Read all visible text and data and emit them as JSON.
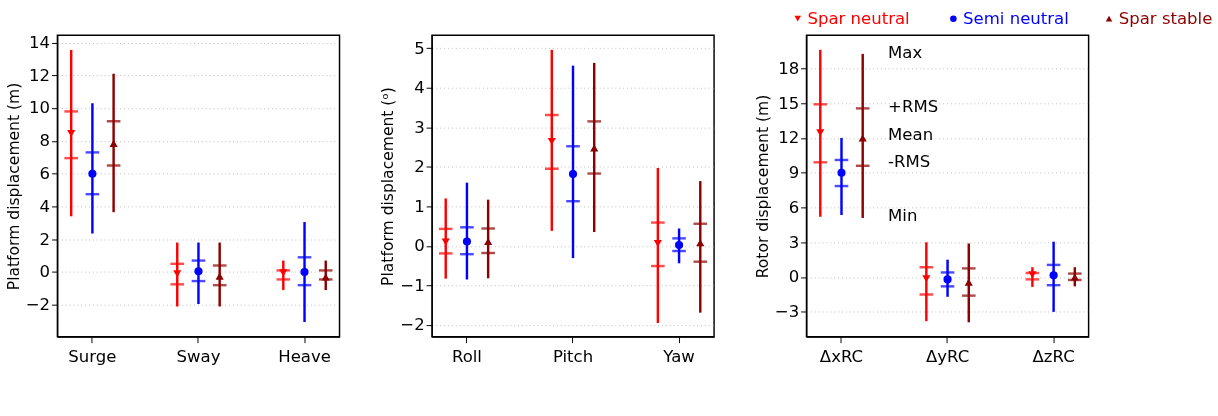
{
  "chart_data": [
    {
      "type": "box",
      "ylabel": "Platform displacement (m)",
      "categories": [
        "Surge",
        "Sway",
        "Heave"
      ],
      "ylim": [
        -3.95,
        14.45
      ],
      "yticks": [
        {
          "value": -2,
          "label": "−2"
        },
        0,
        2,
        4,
        6,
        8,
        10,
        12,
        14
      ],
      "grid": "y",
      "series": [
        {
          "color": "#ff0000",
          "marker": "triangle-down",
          "boxes": [
            {
              "low": 3.4,
              "q1": 6.95,
              "mean": 8.45,
              "q3": 9.8,
              "high": 13.55
            },
            {
              "low": -2.1,
              "q1": -0.75,
              "mean": -0.1,
              "q3": 0.5,
              "high": 1.8
            },
            {
              "low": -1.1,
              "q1": -0.45,
              "mean": -0.05,
              "q3": 0.1,
              "high": 0.7
            }
          ]
        },
        {
          "color": "#0000ff",
          "marker": "circle",
          "boxes": [
            {
              "low": 2.35,
              "q1": 4.75,
              "mean": 6.0,
              "q3": 7.3,
              "high": 10.3
            },
            {
              "low": -1.95,
              "q1": -0.55,
              "mean": 0.05,
              "q3": 0.7,
              "high": 1.8
            },
            {
              "low": -3.05,
              "q1": -0.8,
              "mean": 0.0,
              "q3": 0.9,
              "high": 3.05
            }
          ]
        },
        {
          "color": "#8b0000",
          "marker": "triangle",
          "boxes": [
            {
              "low": 3.65,
              "q1": 6.5,
              "mean": 7.85,
              "q3": 9.2,
              "high": 12.1
            },
            {
              "low": -2.1,
              "q1": -0.8,
              "mean": -0.25,
              "q3": 0.4,
              "high": 1.8
            },
            {
              "low": -1.1,
              "q1": -0.45,
              "mean": -0.3,
              "q3": 0.1,
              "high": 0.7
            }
          ]
        }
      ]
    },
    {
      "type": "box",
      "ylabel": "Platform displacement (ᵒ)",
      "categories": [
        "Roll",
        "Pitch",
        "Yaw"
      ],
      "ylim": [
        -2.3,
        5.33
      ],
      "yticks": [
        {
          "value": -2,
          "label": "−2"
        },
        {
          "value": -1,
          "label": "−1"
        },
        0,
        1,
        2,
        3,
        4,
        5
      ],
      "grid": "y",
      "series": [
        {
          "color": "#ff0000",
          "marker": "triangle-down",
          "boxes": [
            {
              "low": -0.83,
              "q1": -0.19,
              "mean": 0.1,
              "q3": 0.43,
              "high": 1.2
            },
            {
              "low": 0.38,
              "q1": 1.95,
              "mean": 2.64,
              "q3": 3.31,
              "high": 4.96
            },
            {
              "low": -1.95,
              "q1": -0.51,
              "mean": 0.06,
              "q3": 0.59,
              "high": 1.97
            }
          ]
        },
        {
          "color": "#0000ff",
          "marker": "circle",
          "boxes": [
            {
              "low": -0.85,
              "q1": -0.21,
              "mean": 0.11,
              "q3": 0.47,
              "high": 1.6
            },
            {
              "low": -0.31,
              "q1": 1.13,
              "mean": 1.82,
              "q3": 2.52,
              "high": 4.56
            },
            {
              "low": -0.44,
              "q1": -0.13,
              "mean": 0.02,
              "q3": 0.19,
              "high": 0.44
            }
          ]
        },
        {
          "color": "#8b0000",
          "marker": "triangle",
          "boxes": [
            {
              "low": -0.82,
              "q1": -0.18,
              "mean": 0.11,
              "q3": 0.44,
              "high": 1.17
            },
            {
              "low": 0.35,
              "q1": 1.83,
              "mean": 2.48,
              "q3": 3.15,
              "high": 4.63
            },
            {
              "low": -1.69,
              "q1": -0.4,
              "mean": 0.08,
              "q3": 0.56,
              "high": 1.64
            }
          ]
        }
      ]
    },
    {
      "type": "box",
      "ylabel": "Rotor displacement (m)",
      "categories": [
        "ΔxRC",
        "ΔyRC",
        "ΔzRC"
      ],
      "ylim": [
        -5.15,
        20.86
      ],
      "yticks": [
        {
          "value": -3,
          "label": "−3"
        },
        0,
        3,
        6,
        9,
        12,
        15,
        18
      ],
      "grid": "y",
      "legend": "top",
      "annotations": [
        "Max",
        "+RMS",
        "Mean",
        "-RMS",
        "Min"
      ],
      "series": [
        {
          "name": "Spar neutral",
          "color": "#ff0000",
          "marker": "triangle-down",
          "boxes": [
            {
              "low": 5.2,
              "q1": 9.9,
              "mean": 12.45,
              "q3": 14.9,
              "high": 19.6
            },
            {
              "low": -3.8,
              "q1": -1.5,
              "mean": -0.15,
              "q3": 0.85,
              "high": 3.0
            },
            {
              "low": -0.85,
              "q1": -0.2,
              "mean": 0.2,
              "q3": 0.35,
              "high": 0.85
            }
          ]
        },
        {
          "name": "Semi neutral",
          "color": "#0000ff",
          "marker": "circle",
          "boxes": [
            {
              "low": 5.35,
              "q1": 7.85,
              "mean": 9.0,
              "q3": 10.1,
              "high": 12.0
            },
            {
              "low": -1.7,
              "q1": -0.8,
              "mean": -0.2,
              "q3": 0.4,
              "high": 1.5
            },
            {
              "low": -3.0,
              "q1": -0.7,
              "mean": 0.15,
              "q3": 1.05,
              "high": 3.05
            }
          ]
        },
        {
          "name": "Spar stable",
          "color": "#8b0000",
          "marker": "triangle",
          "boxes": [
            {
              "low": 5.1,
              "q1": 9.6,
              "mean": 12.0,
              "q3": 14.55,
              "high": 19.25
            },
            {
              "low": -3.9,
              "q1": -1.6,
              "mean": -0.45,
              "q3": 0.75,
              "high": 2.9
            },
            {
              "low": -0.8,
              "q1": -0.25,
              "mean": 0.0,
              "q3": 0.3,
              "high": 0.85
            }
          ]
        }
      ]
    }
  ]
}
